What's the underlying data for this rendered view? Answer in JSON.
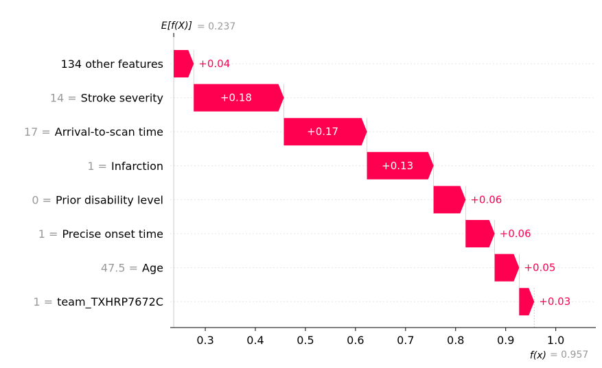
{
  "chart_data": {
    "type": "waterfall",
    "base_value": 0.237,
    "base_label": "E[f(X)]",
    "base_value_text": "= 0.237",
    "output_value": 0.957,
    "output_label": "f(x)",
    "output_value_text": "= 0.957",
    "xlim": [
      0.23,
      1.08
    ],
    "ticks": [
      0.3,
      0.4,
      0.5,
      0.6,
      0.7,
      0.8,
      0.9,
      1.0
    ],
    "tick_labels": [
      "0.3",
      "0.4",
      "0.5",
      "0.6",
      "0.7",
      "0.8",
      "0.9",
      "1.0"
    ],
    "features": [
      {
        "value_text": "",
        "name": "134 other features",
        "start": 0.237,
        "end": 0.277,
        "label": "+0.04"
      },
      {
        "value_text": "14 =",
        "name": "Stroke severity",
        "start": 0.277,
        "end": 0.457,
        "label": "+0.18"
      },
      {
        "value_text": "17 =",
        "name": "Arrival-to-scan time",
        "start": 0.457,
        "end": 0.623,
        "label": "+0.17"
      },
      {
        "value_text": "1 =",
        "name": "Infarction",
        "start": 0.623,
        "end": 0.756,
        "label": "+0.13"
      },
      {
        "value_text": "0 =",
        "name": "Prior disability level",
        "start": 0.756,
        "end": 0.82,
        "label": "+0.06"
      },
      {
        "value_text": "1 =",
        "name": "Precise onset time",
        "start": 0.82,
        "end": 0.878,
        "label": "+0.06"
      },
      {
        "value_text": "47.5 =",
        "name": "Age",
        "start": 0.878,
        "end": 0.927,
        "label": "+0.05"
      },
      {
        "value_text": "1 =",
        "name": "team_TXHRP7672C",
        "start": 0.927,
        "end": 0.957,
        "label": "+0.03"
      }
    ],
    "colors": {
      "positive": "#ff0051",
      "guide": "#cccccc",
      "axis": "#000000",
      "muted": "#999999"
    }
  }
}
